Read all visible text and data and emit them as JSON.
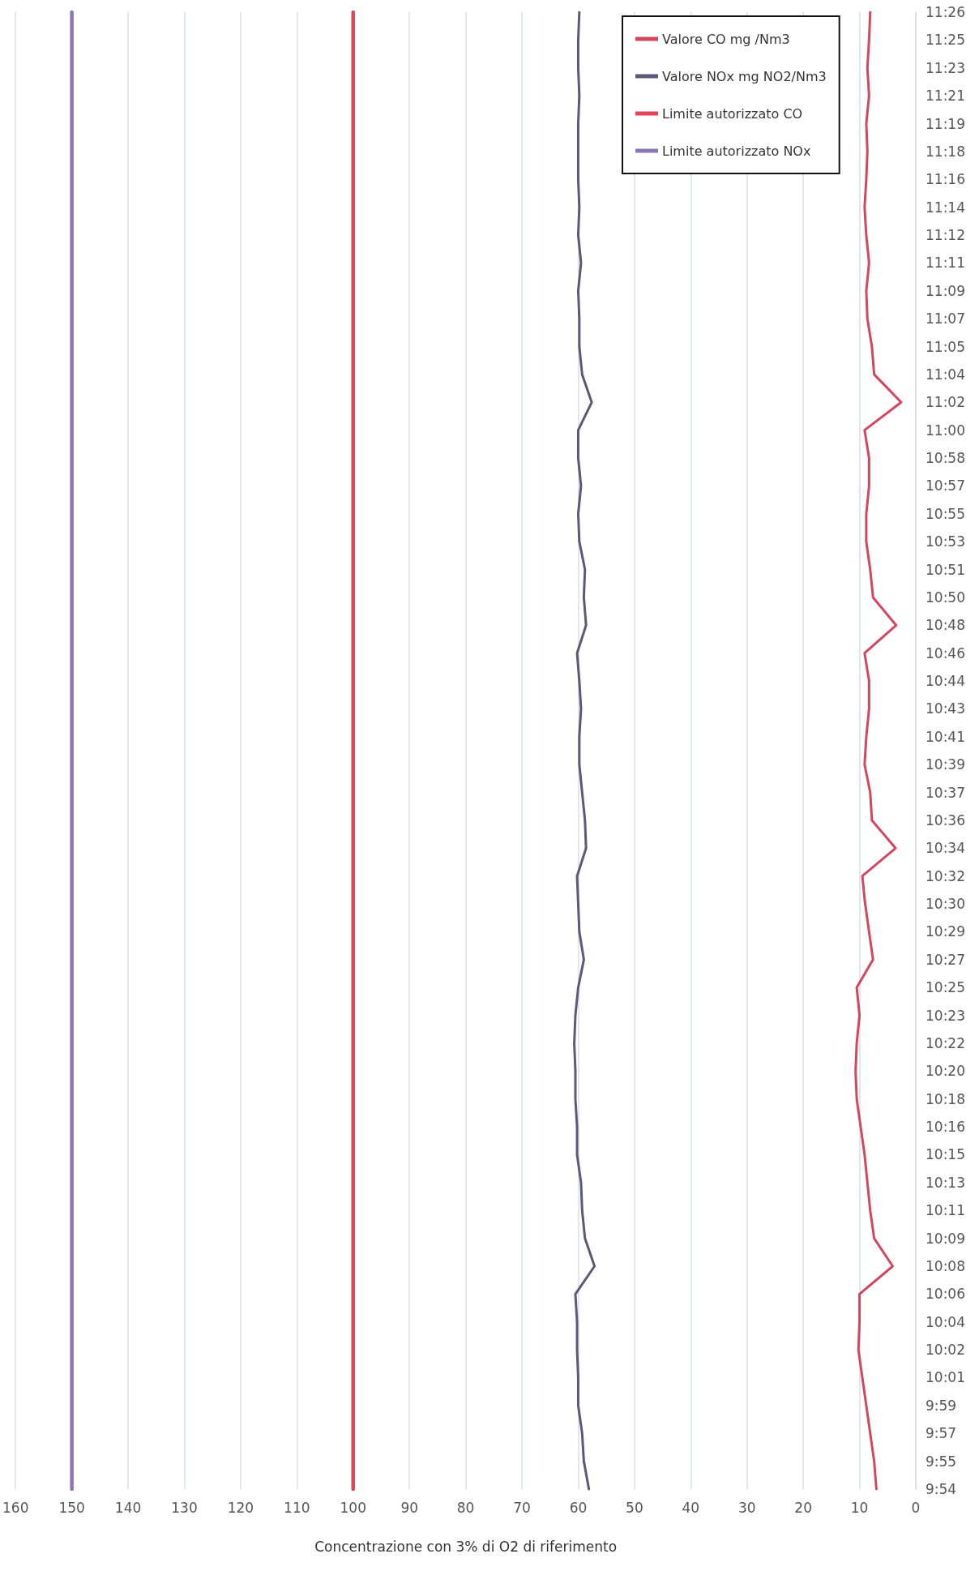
{
  "chart_data": {
    "type": "line",
    "xlabel": "Concentrazione con 3% di O2 di riferimento",
    "orientation": "horizontal",
    "categories": [
      "11:26",
      "11:25",
      "11:23",
      "11:21",
      "11:19",
      "11:18",
      "11:16",
      "11:14",
      "11:12",
      "11:11",
      "11:09",
      "11:07",
      "11:05",
      "11:04",
      "11:02",
      "11:00",
      "10:58",
      "10:57",
      "10:55",
      "10:53",
      "10:51",
      "10:50",
      "10:48",
      "10:46",
      "10:44",
      "10:43",
      "10:41",
      "10:39",
      "10:37",
      "10:36",
      "10:34",
      "10:32",
      "10:30",
      "10:29",
      "10:27",
      "10:25",
      "10:23",
      "10:22",
      "10:20",
      "10:18",
      "10:16",
      "10:15",
      "10:13",
      "10:11",
      "10:09",
      "10:08",
      "10:06",
      "10:04",
      "10:02",
      "10:01",
      "9:59",
      "9:57",
      "9:55",
      "9:54"
    ],
    "series": [
      {
        "name": "Valore CO mg /Nm3",
        "color": "#d2475f",
        "values": [
          8.1,
          8.3,
          8.6,
          8.3,
          8.8,
          8.6,
          8.8,
          9.1,
          8.8,
          8.3,
          8.8,
          8.6,
          7.8,
          7.4,
          2.6,
          9.1,
          8.3,
          8.3,
          8.8,
          8.8,
          8.1,
          7.6,
          3.5,
          9.1,
          8.3,
          8.3,
          8.8,
          9.1,
          8.1,
          7.8,
          3.6,
          9.5,
          9.0,
          8.3,
          7.6,
          10.5,
          10.0,
          10.5,
          10.7,
          10.5,
          9.8,
          9.1,
          8.6,
          8.1,
          7.4,
          4.1,
          10.0,
          10.0,
          10.2,
          9.5,
          8.8,
          8.1,
          7.4,
          7.0
        ]
      },
      {
        "name": "Valore NOx mg NO2/Nm3",
        "color": "#5c5878",
        "values": [
          59.8,
          60.0,
          60.0,
          59.8,
          60.0,
          60.0,
          60.0,
          59.8,
          60.0,
          59.5,
          60.0,
          59.8,
          59.8,
          59.3,
          57.6,
          60.0,
          60.0,
          59.5,
          60.0,
          59.8,
          58.8,
          59.0,
          58.6,
          60.2,
          59.8,
          59.5,
          59.8,
          59.8,
          59.3,
          58.8,
          58.6,
          60.2,
          60.0,
          59.8,
          59.0,
          60.0,
          60.5,
          60.7,
          60.5,
          60.5,
          60.2,
          60.2,
          59.5,
          59.3,
          58.8,
          57.1,
          60.5,
          60.2,
          60.2,
          60.0,
          60.0,
          59.3,
          59.0,
          58.1
        ]
      },
      {
        "name": "Limite autorizzato CO",
        "color": "#e24458",
        "values": [
          100,
          100,
          100,
          100,
          100,
          100,
          100,
          100,
          100,
          100,
          100,
          100,
          100,
          100,
          100,
          100,
          100,
          100,
          100,
          100,
          100,
          100,
          100,
          100,
          100,
          100,
          100,
          100,
          100,
          100,
          100,
          100,
          100,
          100,
          100,
          100,
          100,
          100,
          100,
          100,
          100,
          100,
          100,
          100,
          100,
          100,
          100,
          100,
          100,
          100,
          100,
          100,
          100,
          100
        ]
      },
      {
        "name": "Limite autorizzato NOx",
        "color": "#8c76b8",
        "values": [
          150,
          150,
          150,
          150,
          150,
          150,
          150,
          150,
          150,
          150,
          150,
          150,
          150,
          150,
          150,
          150,
          150,
          150,
          150,
          150,
          150,
          150,
          150,
          150,
          150,
          150,
          150,
          150,
          150,
          150,
          150,
          150,
          150,
          150,
          150,
          150,
          150,
          150,
          150,
          150,
          150,
          150,
          150,
          150,
          150,
          150,
          150,
          150,
          150,
          150,
          150,
          150,
          150,
          150
        ]
      }
    ],
    "xlim": [
      160,
      0
    ],
    "xticks": [
      160,
      150,
      140,
      130,
      120,
      110,
      100,
      90,
      80,
      70,
      60,
      50,
      40,
      30,
      20,
      10,
      0
    ],
    "grid": "x",
    "legend": "top right",
    "marker": "none",
    "line_style": "solid"
  }
}
